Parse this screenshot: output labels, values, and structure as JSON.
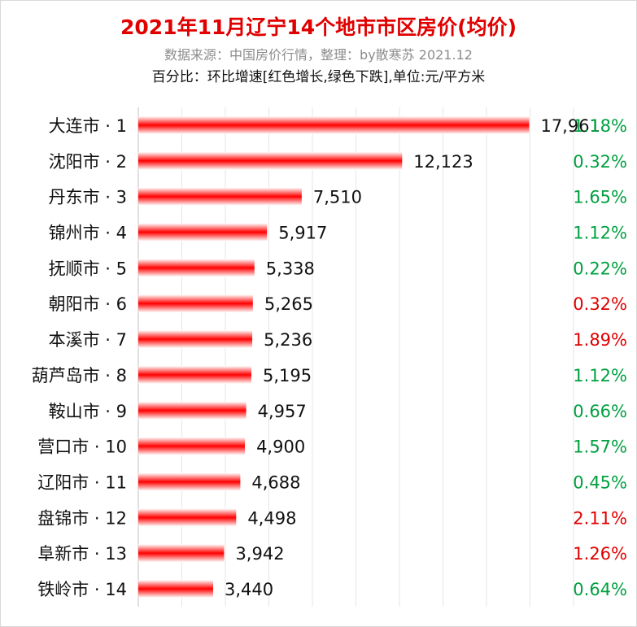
{
  "chart_data": {
    "type": "bar",
    "orientation": "horizontal",
    "title": "2021年11月辽宁14个地市市区房价(均价)",
    "subtitle": "数据来源：中国房价行情，整理：by散寒苏 2021.12",
    "note": "百分比：环比增速[红色增长,绿色下跌],单位:元/平方米",
    "categories": [
      "大连市 · 1",
      "沈阳市 · 2",
      "丹东市 · 3",
      "锦州市 · 4",
      "抚顺市 · 5",
      "朝阳市 · 6",
      "本溪市 · 7",
      "葫芦岛市 · 8",
      "鞍山市 · 9",
      "营口市 · 10",
      "辽阳市 · 11",
      "盘锦市 · 12",
      "阜新市 · 13",
      "铁岭市 · 14"
    ],
    "values": [
      17961,
      12123,
      7510,
      5917,
      5338,
      5265,
      5236,
      5195,
      4957,
      4900,
      4688,
      4498,
      3942,
      3440
    ],
    "value_labels": [
      "17,961",
      "12,123",
      "7,510",
      "5,917",
      "5,338",
      "5,265",
      "5,236",
      "5,195",
      "4,957",
      "4,900",
      "4,688",
      "4,498",
      "3,942",
      "3,440"
    ],
    "change_pct": [
      "1.18%",
      "0.32%",
      "1.65%",
      "1.12%",
      "0.22%",
      "0.32%",
      "1.89%",
      "1.12%",
      "0.66%",
      "1.57%",
      "0.45%",
      "2.11%",
      "1.26%",
      "0.64%"
    ],
    "change_direction": [
      "down",
      "down",
      "down",
      "down",
      "down",
      "up",
      "up",
      "down",
      "down",
      "down",
      "down",
      "up",
      "up",
      "down"
    ],
    "xlim": [
      0,
      20000
    ],
    "grid": true,
    "colors": {
      "bar": "#ff0000",
      "up": "#e00000",
      "down": "#00a040",
      "grid": "#e6e6e6"
    }
  }
}
